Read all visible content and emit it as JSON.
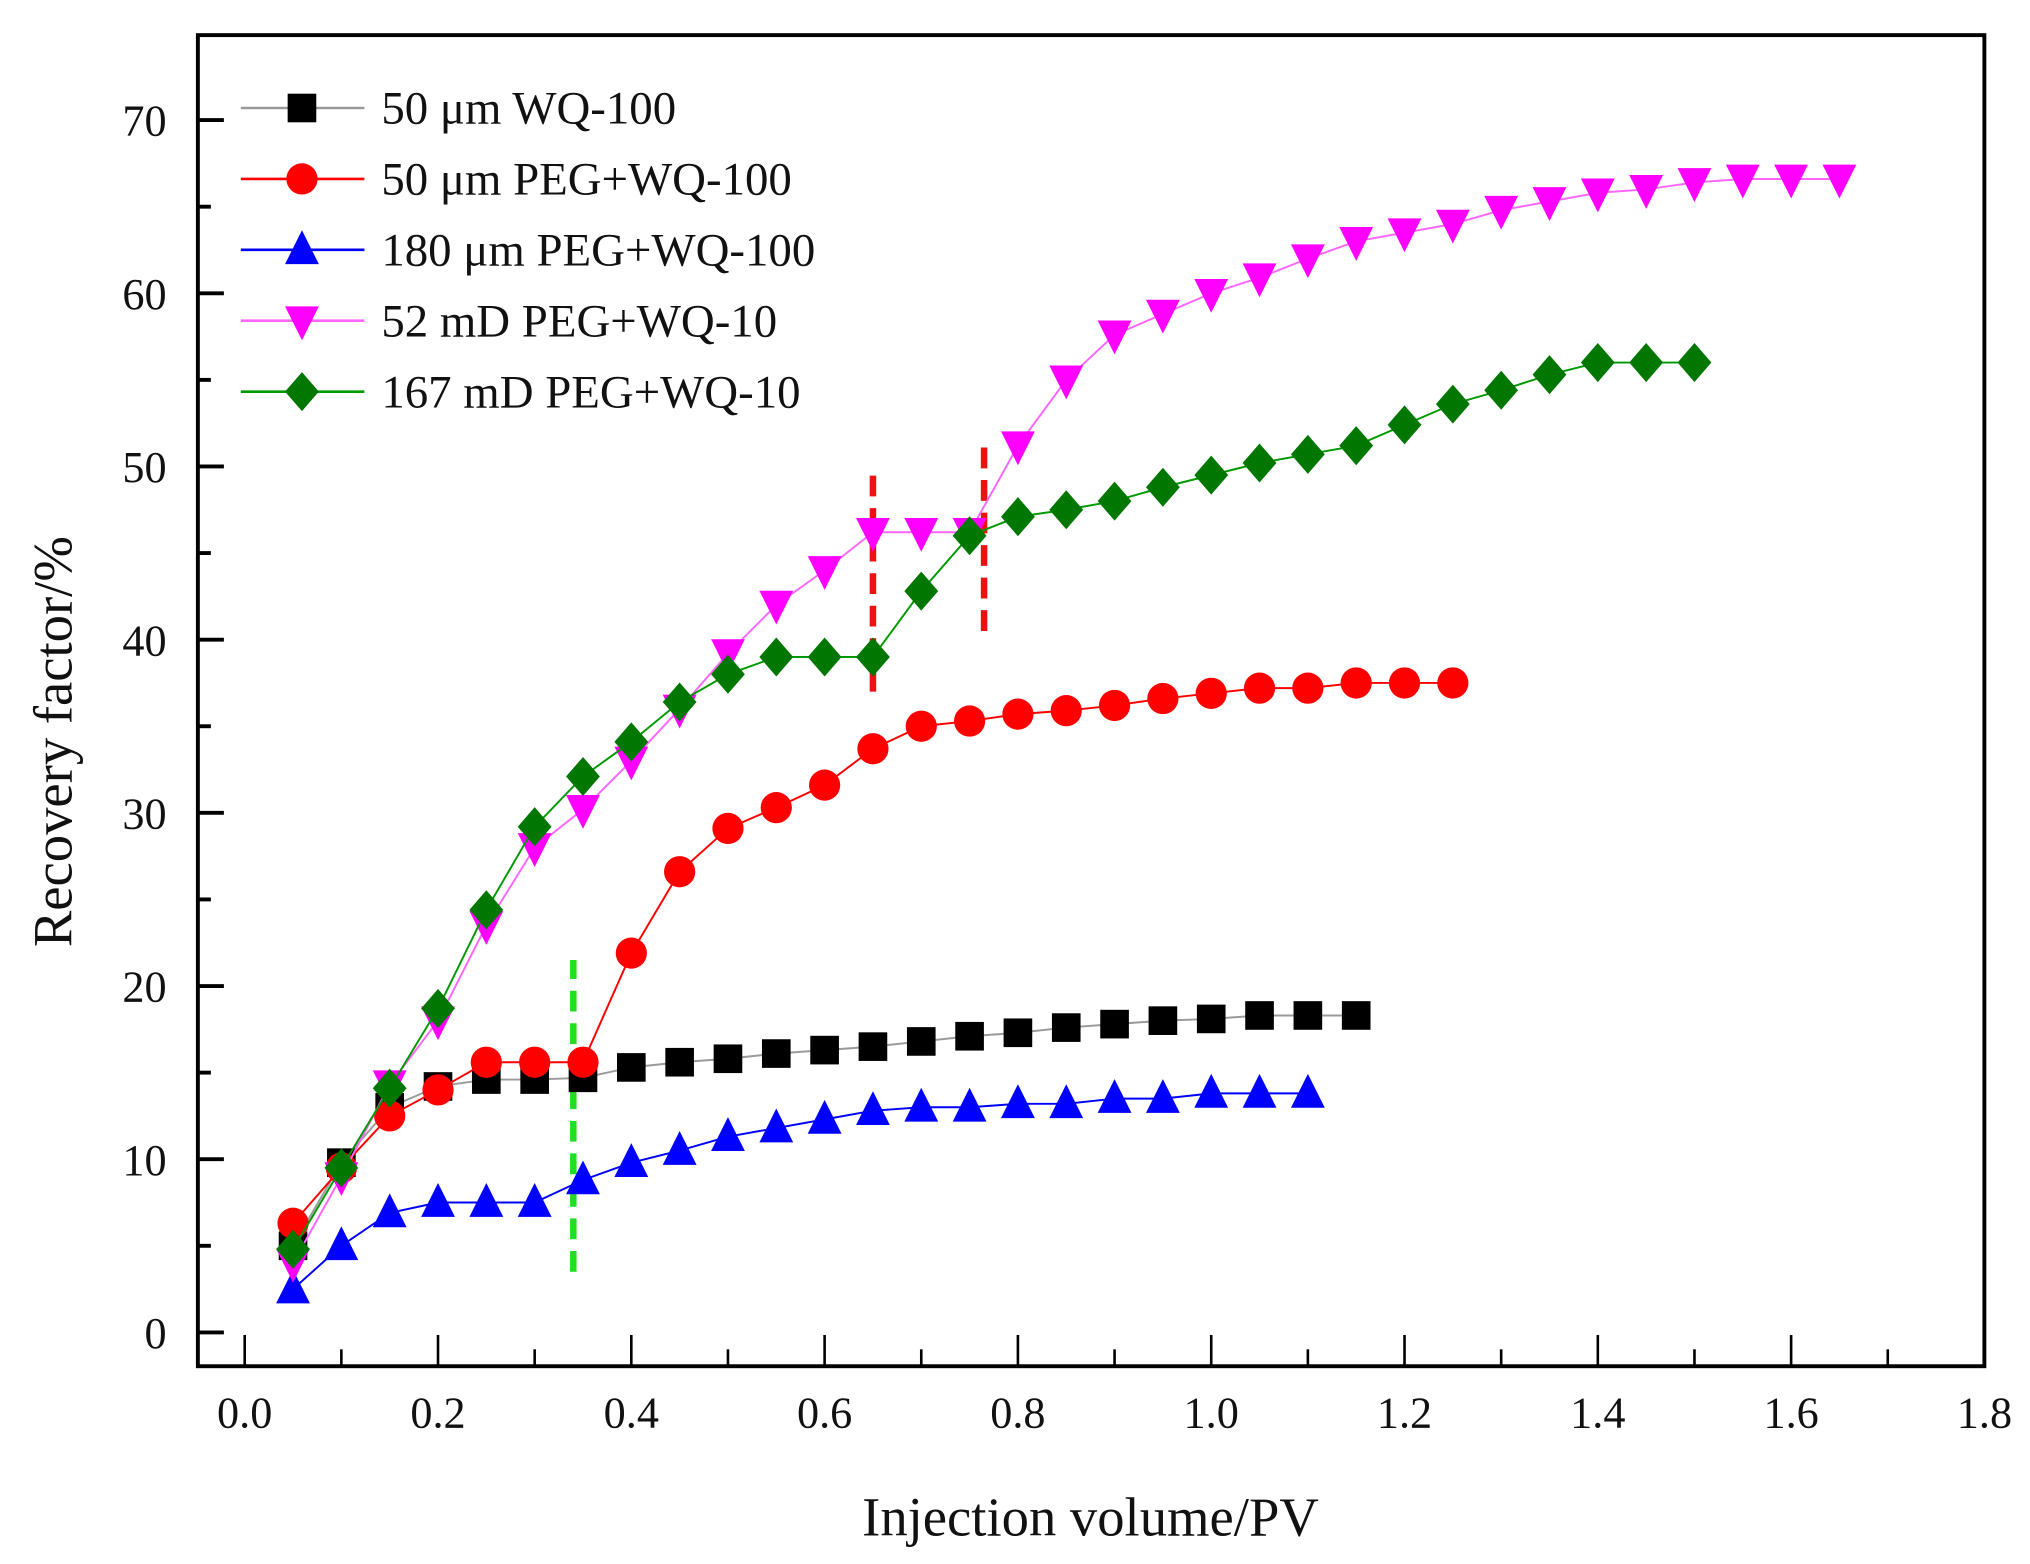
{
  "chart_data": {
    "type": "line",
    "title": "",
    "xlabel": "Injection volume/PV",
    "ylabel": "Recovery factor/%",
    "xlim": [
      -0.05,
      1.8
    ],
    "ylim": [
      -2,
      75
    ],
    "xticks": [
      "0.0",
      "0.2",
      "0.4",
      "0.6",
      "0.8",
      "1.0",
      "1.2",
      "1.4",
      "1.6",
      "1.8"
    ],
    "xtick_values": [
      0,
      0.2,
      0.4,
      0.6,
      0.8,
      1.0,
      1.2,
      1.4,
      1.6,
      1.8
    ],
    "yticks": [
      "0",
      "10",
      "20",
      "30",
      "40",
      "50",
      "60",
      "70"
    ],
    "ytick_values": [
      0,
      10,
      20,
      30,
      40,
      50,
      60,
      70
    ],
    "grid": false,
    "legend_position": "top-left",
    "series": [
      {
        "name": "50 μm WQ-100",
        "color": "#000000",
        "line_color": "#9a9a9a",
        "marker": "square",
        "x": [
          0.05,
          0.1,
          0.15,
          0.2,
          0.25,
          0.3,
          0.35,
          0.4,
          0.45,
          0.5,
          0.55,
          0.6,
          0.65,
          0.7,
          0.75,
          0.8,
          0.85,
          0.9,
          0.95,
          1.0,
          1.05,
          1.1,
          1.15
        ],
        "y": [
          5.0,
          9.8,
          13.0,
          14.2,
          14.6,
          14.6,
          14.7,
          15.3,
          15.6,
          15.8,
          16.1,
          16.3,
          16.5,
          16.8,
          17.1,
          17.3,
          17.6,
          17.8,
          18.0,
          18.1,
          18.3,
          18.3,
          18.3
        ]
      },
      {
        "name": "50 μm PEG+WQ-100",
        "color": "#ff0000",
        "line_color": "#ff0000",
        "marker": "circle",
        "x": [
          0.05,
          0.1,
          0.15,
          0.2,
          0.25,
          0.3,
          0.35,
          0.4,
          0.45,
          0.5,
          0.55,
          0.6,
          0.65,
          0.7,
          0.75,
          0.8,
          0.85,
          0.9,
          0.95,
          1.0,
          1.05,
          1.1,
          1.15,
          1.2,
          1.25
        ],
        "y": [
          6.3,
          9.5,
          12.5,
          14.0,
          15.6,
          15.6,
          15.6,
          21.9,
          26.6,
          29.1,
          30.3,
          31.6,
          33.7,
          35.0,
          35.3,
          35.7,
          35.9,
          36.2,
          36.6,
          36.9,
          37.2,
          37.2,
          37.5,
          37.5,
          37.5
        ]
      },
      {
        "name": "180 μm PEG+WQ-100",
        "color": "#0000ff",
        "line_color": "#0000ff",
        "marker": "triangle-up",
        "x": [
          0.05,
          0.1,
          0.15,
          0.2,
          0.25,
          0.3,
          0.35,
          0.4,
          0.45,
          0.5,
          0.55,
          0.6,
          0.65,
          0.7,
          0.75,
          0.8,
          0.85,
          0.9,
          0.95,
          1.0,
          1.05,
          1.1
        ],
        "y": [
          2.5,
          5.0,
          6.9,
          7.5,
          7.5,
          7.5,
          8.8,
          9.8,
          10.5,
          11.3,
          11.8,
          12.3,
          12.8,
          13.0,
          13.0,
          13.2,
          13.2,
          13.5,
          13.5,
          13.8,
          13.8,
          13.8
        ]
      },
      {
        "name": "52 mD PEG+WQ-10",
        "color": "#ff00ff",
        "line_color": "#ff66ff",
        "marker": "triangle-down",
        "x": [
          0.05,
          0.1,
          0.15,
          0.2,
          0.25,
          0.3,
          0.35,
          0.4,
          0.45,
          0.5,
          0.55,
          0.6,
          0.65,
          0.7,
          0.75,
          0.8,
          0.85,
          0.9,
          0.95,
          1.0,
          1.05,
          1.1,
          1.15,
          1.2,
          1.25,
          1.3,
          1.35,
          1.4,
          1.45,
          1.5,
          1.55,
          1.6,
          1.65
        ],
        "y": [
          4.0,
          9.0,
          14.3,
          18.0,
          23.5,
          28.0,
          30.2,
          33.0,
          36.0,
          39.2,
          42.0,
          44.0,
          46.2,
          46.2,
          46.2,
          51.2,
          55.0,
          57.6,
          58.8,
          60.0,
          60.9,
          62.0,
          63.0,
          63.5,
          64.0,
          64.8,
          65.3,
          65.8,
          66.0,
          66.4,
          66.6,
          66.6,
          66.6
        ]
      },
      {
        "name": "167 mD PEG+WQ-10",
        "color": "#007700",
        "line_color": "#009900",
        "marker": "diamond",
        "x": [
          0.05,
          0.1,
          0.15,
          0.2,
          0.25,
          0.3,
          0.35,
          0.4,
          0.45,
          0.5,
          0.55,
          0.6,
          0.65,
          0.7,
          0.75,
          0.8,
          0.85,
          0.9,
          0.95,
          1.0,
          1.05,
          1.1,
          1.15,
          1.2,
          1.25,
          1.3,
          1.35,
          1.4,
          1.45,
          1.5
        ],
        "y": [
          4.8,
          9.5,
          14.1,
          18.7,
          24.4,
          29.2,
          32.1,
          34.1,
          36.4,
          38.0,
          39.0,
          39.0,
          39.0,
          42.8,
          46.0,
          47.1,
          47.5,
          48.0,
          48.8,
          49.5,
          50.2,
          50.7,
          51.2,
          52.4,
          53.6,
          54.4,
          55.3,
          56.0,
          56.0,
          56.0
        ]
      }
    ],
    "annotations": [
      {
        "type": "dashed-vline",
        "color": "#22dd22",
        "x": 0.34,
        "y_from": 3.5,
        "y_to": 21.5
      },
      {
        "type": "dashed-vline",
        "color": "#ee1111",
        "x": 0.65,
        "y_from": 37,
        "y_to": 50
      },
      {
        "type": "dashed-vline",
        "color": "#ee1111",
        "x": 0.765,
        "y_from": 40.5,
        "y_to": 51.5
      }
    ]
  }
}
